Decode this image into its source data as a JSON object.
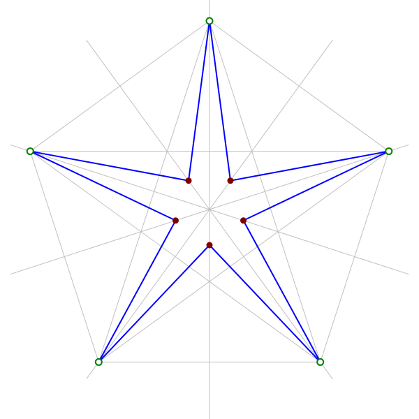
{
  "diagram": {
    "outer_vertex_count": 5,
    "colors": {
      "background": "#ffffff",
      "construction_lines": "#c0c0c0",
      "star_lines": "#0000ff",
      "outer_vertex_stroke": "#008000",
      "outer_vertex_fill": "#ffffff",
      "inner_points": "#800000"
    }
  }
}
